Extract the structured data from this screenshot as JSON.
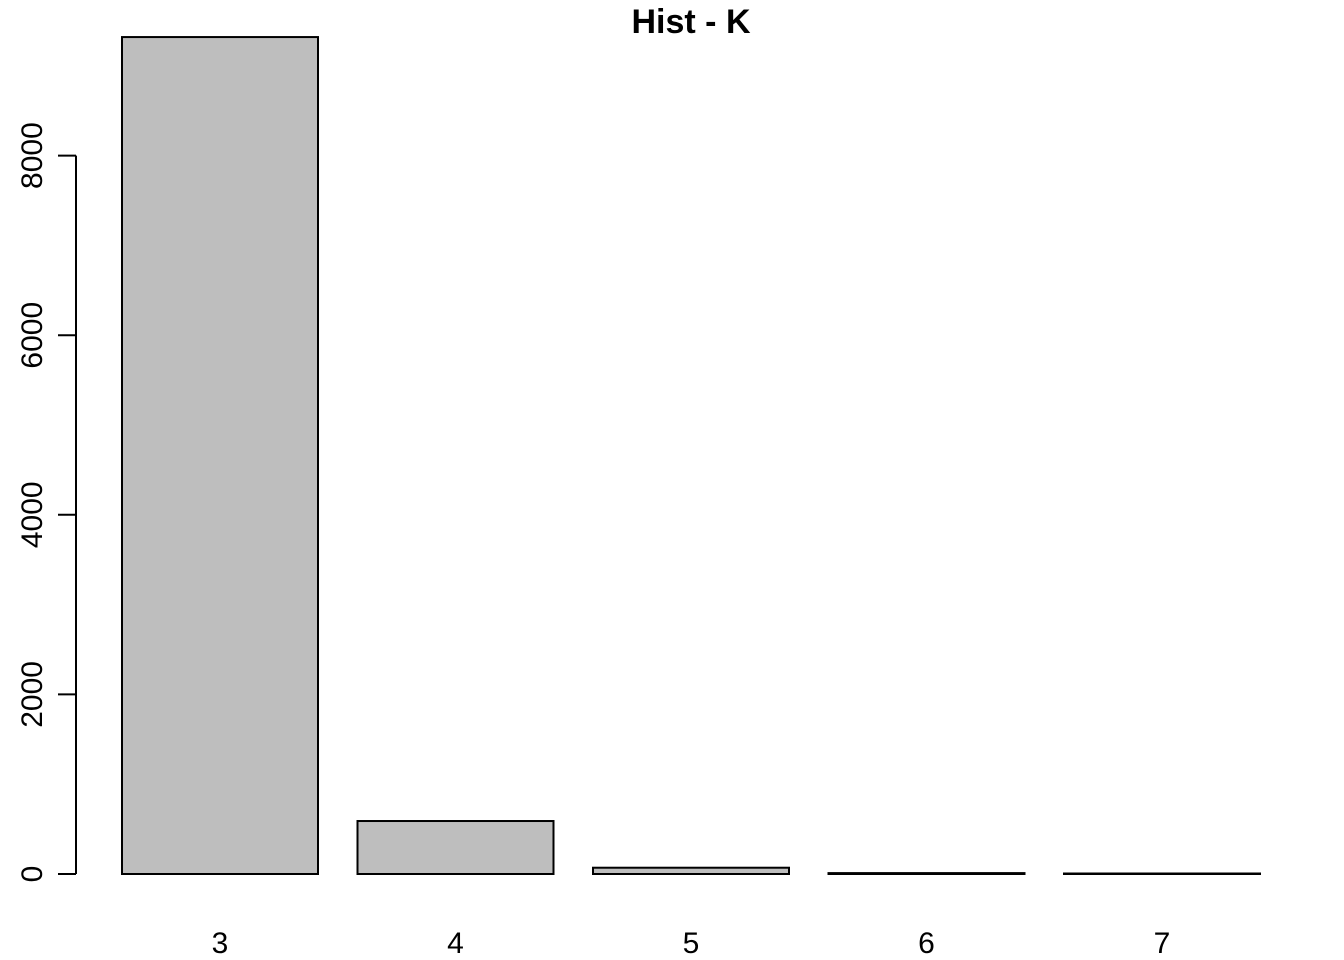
{
  "colors": {
    "bar_fill": "#bebebe",
    "bar_stroke": "#000000",
    "axis": "#000000",
    "background": "#ffffff"
  },
  "chart_data": {
    "type": "bar",
    "title": "Hist - K",
    "xlabel": "",
    "ylabel": "",
    "categories": [
      "3",
      "4",
      "5",
      "6",
      "7"
    ],
    "values": [
      9320,
      590,
      70,
      10,
      2
    ],
    "ylim": [
      0,
      9320
    ],
    "yticks": [
      0,
      2000,
      4000,
      6000,
      8000
    ],
    "ytick_labels": [
      "0",
      "2000",
      "4000",
      "6000",
      "8000"
    ],
    "grid": false,
    "legend": "none"
  }
}
